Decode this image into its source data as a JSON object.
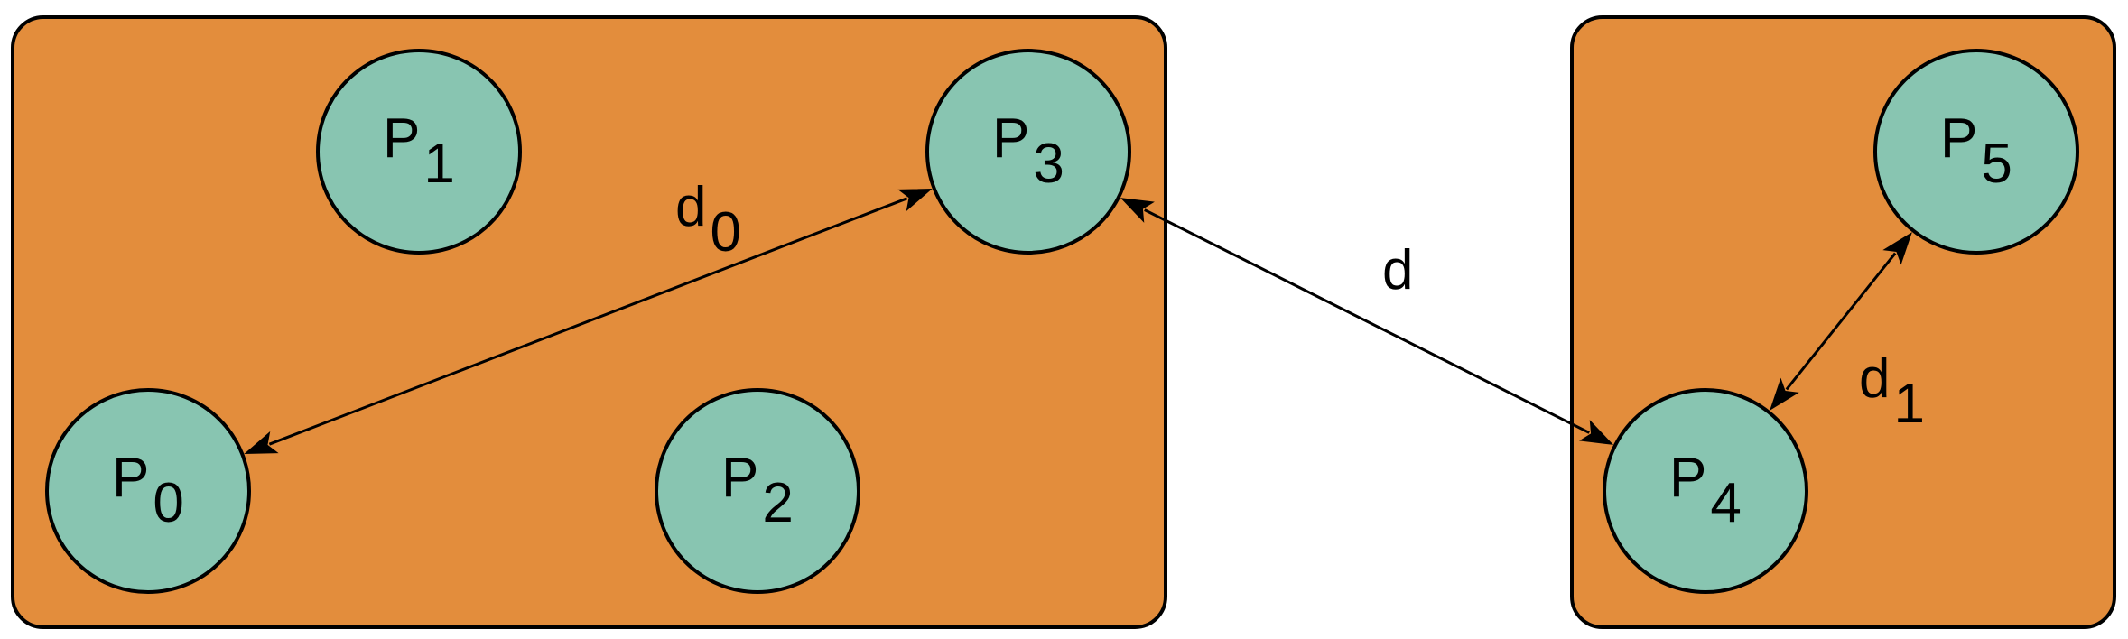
{
  "colors": {
    "cluster_fill": "#E38D3C",
    "node_fill": "#88C5B1",
    "stroke": "#000000",
    "background": "#FFFFFF"
  },
  "clusters": [
    {
      "id": "left-cluster"
    },
    {
      "id": "right-cluster"
    }
  ],
  "nodes": {
    "p0": {
      "label": "P",
      "sub": "0"
    },
    "p1": {
      "label": "P",
      "sub": "1"
    },
    "p2": {
      "label": "P",
      "sub": "2"
    },
    "p3": {
      "label": "P",
      "sub": "3"
    },
    "p4": {
      "label": "P",
      "sub": "4"
    },
    "p5": {
      "label": "P",
      "sub": "5"
    }
  },
  "edges": [
    {
      "from": "p0",
      "to": "p3",
      "label": "d",
      "sub": "0",
      "bidirectional": true
    },
    {
      "from": "p3",
      "to": "p4",
      "label": "d",
      "sub": "",
      "bidirectional": true
    },
    {
      "from": "p4",
      "to": "p5",
      "label": "d",
      "sub": "1",
      "bidirectional": true
    }
  ]
}
